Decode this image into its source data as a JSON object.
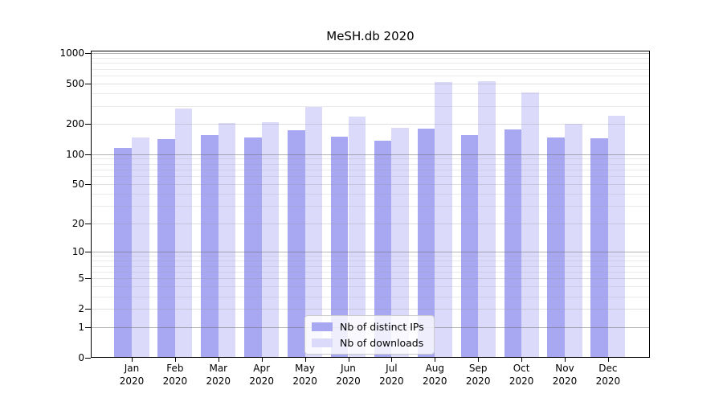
{
  "chart_data": {
    "type": "bar",
    "title": "MeSH.db 2020",
    "categories": [
      "Jan 2020",
      "Feb 2020",
      "Mar 2020",
      "Apr 2020",
      "May 2020",
      "Jun 2020",
      "Jul 2020",
      "Aug 2020",
      "Sep 2020",
      "Oct 2020",
      "Nov 2020",
      "Dec 2020"
    ],
    "series": [
      {
        "name": "Nb of distinct IPs",
        "color": "#a8a8f2",
        "values": [
          117,
          142,
          156,
          147,
          174,
          150,
          138,
          180,
          156,
          176,
          147,
          145
        ]
      },
      {
        "name": "Nb of downloads",
        "color": "#dbdafa",
        "values": [
          148,
          287,
          205,
          211,
          295,
          239,
          185,
          519,
          536,
          413,
          203,
          244
        ]
      }
    ],
    "yscale": "symlog",
    "y_ticks": [
      0,
      1,
      2,
      5,
      10,
      20,
      50,
      100,
      200,
      500,
      1000
    ],
    "y_minor_gridlines": [
      3,
      4,
      6,
      7,
      8,
      9,
      30,
      40,
      60,
      70,
      80,
      90,
      300,
      400,
      600,
      700,
      800,
      900
    ],
    "y_decade_gridlines": [
      1,
      10,
      100,
      1000
    ],
    "ylim": [
      0,
      1086
    ],
    "xlabel": "",
    "ylabel": "",
    "grid": true,
    "legend_position": "lower center",
    "frame_color": "#000000",
    "background_color": "#ffffff"
  }
}
